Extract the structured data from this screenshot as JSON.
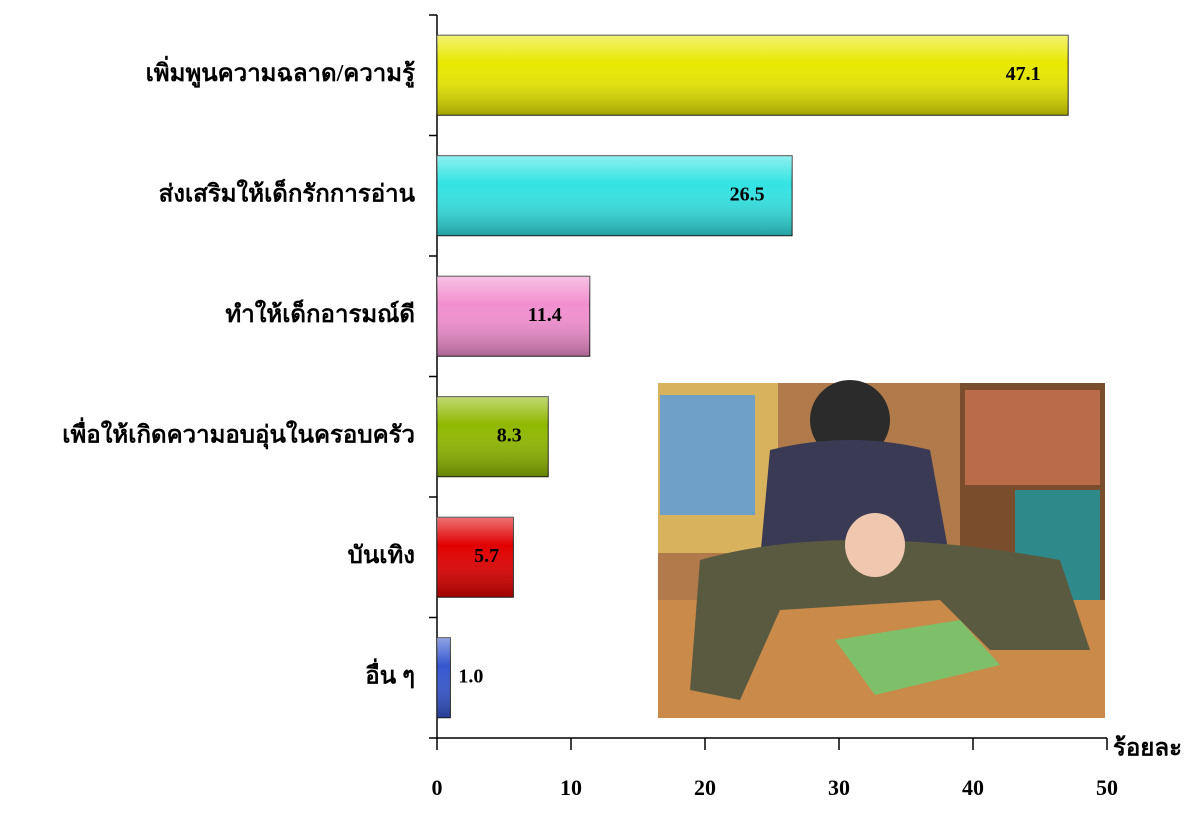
{
  "chart_data": {
    "type": "barh",
    "categories": [
      "เพิ่มพูนความฉลาด/ความรู้",
      "ส่งเสริมให้เด็กรักการอ่าน",
      "ทำให้เด็กอารมณ์ดี",
      "เพื่อให้เกิดความอบอุ่นในครอบครัว",
      "บันเทิง",
      "อื่น ๆ"
    ],
    "values": [
      47.1,
      26.5,
      11.4,
      8.3,
      5.7,
      1.0
    ],
    "value_labels": [
      "47.1",
      "26.5",
      "11.4",
      "8.3",
      "5.7",
      "1.0"
    ],
    "colors": [
      "#e8e800",
      "#33e3e3",
      "#f28fcf",
      "#8fb800",
      "#e00000",
      "#3557cf"
    ],
    "x_label": "ร้อยละ",
    "xlim": [
      0,
      50
    ],
    "xticks": [
      0,
      10,
      20,
      30,
      40,
      50
    ]
  }
}
